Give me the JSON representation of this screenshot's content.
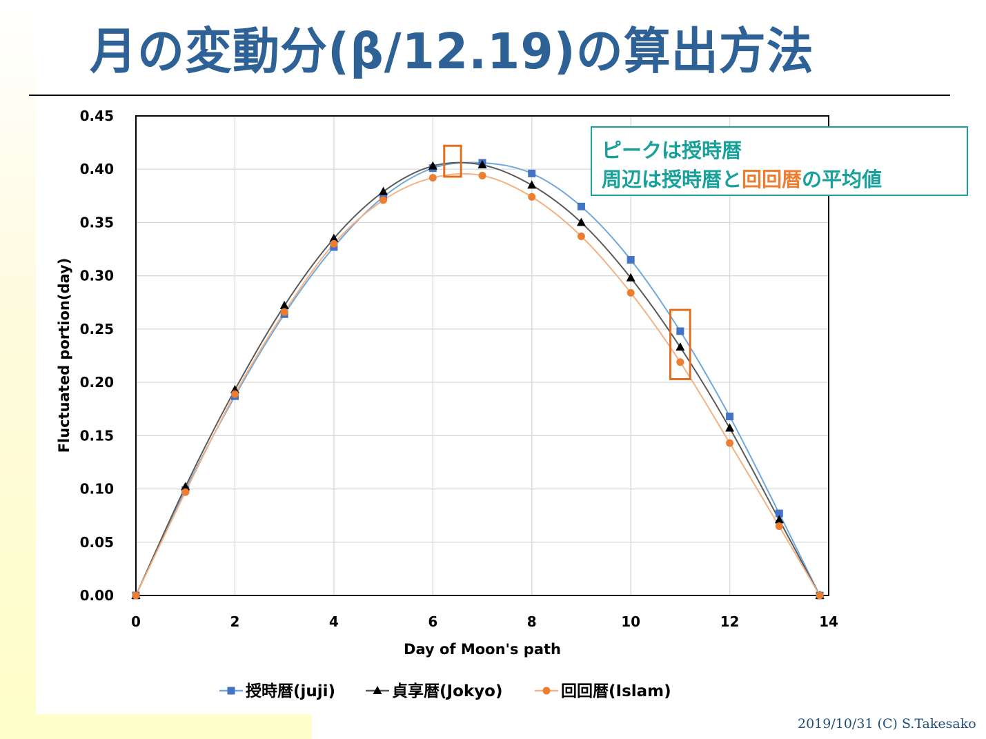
{
  "slide": {
    "title": "月の変動分(β/12.19)の算出方法",
    "footer": "2019/10/31 (C) S.Takesako"
  },
  "annotation": {
    "line1": "ピークは授時暦",
    "line2_prefix": "周辺は授時暦と",
    "line2_highlight": "回回暦",
    "line2_suffix": "の平均値"
  },
  "colors": {
    "title": "#2e6196",
    "juji": "#4472c4",
    "juji_line": "#6fa8dc",
    "jokyo": "#000000",
    "jokyo_line": "#595959",
    "islam": "#ed7d31",
    "islam_line": "#f4b183",
    "annotation": "#17a19a",
    "highlight_box": "#e07020"
  },
  "chart_data": {
    "type": "scatter",
    "xlabel": "Day of Moon's path",
    "ylabel": "Fluctuated portion(day)",
    "xlim": [
      0,
      14
    ],
    "ylim": [
      0,
      0.45
    ],
    "xticks": [
      "0",
      "2",
      "4",
      "6",
      "8",
      "10",
      "12",
      "14"
    ],
    "yticks": [
      "0.00",
      "0.05",
      "0.10",
      "0.15",
      "0.20",
      "0.25",
      "0.30",
      "0.35",
      "0.40",
      "0.45"
    ],
    "grid": true,
    "legend_position": "bottom",
    "series": [
      {
        "name": "授時暦(juji)",
        "marker": "square",
        "x": [
          0,
          1,
          2,
          3,
          4,
          5,
          6,
          7,
          8,
          9,
          10,
          11,
          12,
          13,
          13.82
        ],
        "y": [
          0,
          0.099,
          0.187,
          0.264,
          0.327,
          0.374,
          0.401,
          0.406,
          0.396,
          0.365,
          0.315,
          0.248,
          0.168,
          0.077,
          0
        ]
      },
      {
        "name": "貞享暦(Jokyo)",
        "marker": "triangle",
        "x": [
          0,
          1,
          2,
          3,
          4,
          5,
          6,
          7,
          8,
          9,
          10,
          11,
          12,
          13,
          13.82
        ],
        "y": [
          0,
          0.102,
          0.193,
          0.272,
          0.335,
          0.379,
          0.403,
          0.404,
          0.385,
          0.35,
          0.298,
          0.233,
          0.157,
          0.071,
          0
        ]
      },
      {
        "name": "回回暦(Islam)",
        "marker": "circle",
        "x": [
          0,
          1,
          2,
          3,
          4,
          5,
          6,
          7,
          8,
          9,
          10,
          11,
          12,
          13,
          13.82
        ],
        "y": [
          0,
          0.097,
          0.189,
          0.266,
          0.33,
          0.371,
          0.392,
          0.394,
          0.374,
          0.337,
          0.284,
          0.219,
          0.143,
          0.065,
          0
        ]
      }
    ],
    "highlights": [
      {
        "x_from": 6.23,
        "x_to": 6.57,
        "y_from": 0.393,
        "y_to": 0.422
      },
      {
        "x_from": 10.8,
        "x_to": 11.2,
        "y_from": 0.203,
        "y_to": 0.268
      }
    ]
  }
}
